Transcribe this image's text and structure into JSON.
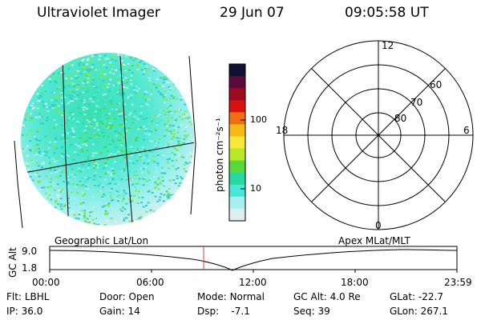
{
  "header": {
    "instrument": "Ultraviolet Imager",
    "date": "29 Jun 07",
    "time": "09:05:58 UT"
  },
  "colorbar": {
    "unit_label": "photon cm⁻²s⁻¹",
    "ticks": [
      "100",
      "10"
    ],
    "colors": [
      "#111133",
      "#5a0a3c",
      "#9b0a1e",
      "#d81010",
      "#f07010",
      "#f8b818",
      "#f8e838",
      "#b8e828",
      "#58d838",
      "#28d8a0",
      "#48e8d8",
      "#a8f0f0",
      "#dceeee"
    ]
  },
  "polar": {
    "mlt_labels": {
      "top": "12",
      "bottom": "0",
      "left": "18",
      "right": "6"
    },
    "lat_labels": [
      "80",
      "70",
      "60"
    ]
  },
  "timeline": {
    "left_label": "Geographic Lat/Lon",
    "right_label": "Apex MLat/MLT",
    "axis_title": "GC Alt",
    "y_ticks": [
      "9.0",
      "1.8"
    ],
    "x_ticks": [
      "00:00",
      "06:00",
      "12:00",
      "18:00",
      "23:59"
    ],
    "marker_time": "09:05:58"
  },
  "status": {
    "row1": [
      {
        "key": "Flt: ",
        "value": "LBHL"
      },
      {
        "key": "Door: ",
        "value": "Open"
      },
      {
        "key": "Mode: ",
        "value": "Normal"
      },
      {
        "key": "GC Alt: ",
        "value": "4.0 Re"
      },
      {
        "key": "GLat: ",
        "value": "-22.7"
      }
    ],
    "row2": [
      {
        "key": "IP: ",
        "value": "36.0"
      },
      {
        "key": "Gain: ",
        "value": "14"
      },
      {
        "key": "Dsp: ",
        "value": "   -7.1"
      },
      {
        "key": "Seq: ",
        "value": "39"
      },
      {
        "key": "GLon: ",
        "value": "267.1"
      }
    ]
  }
}
